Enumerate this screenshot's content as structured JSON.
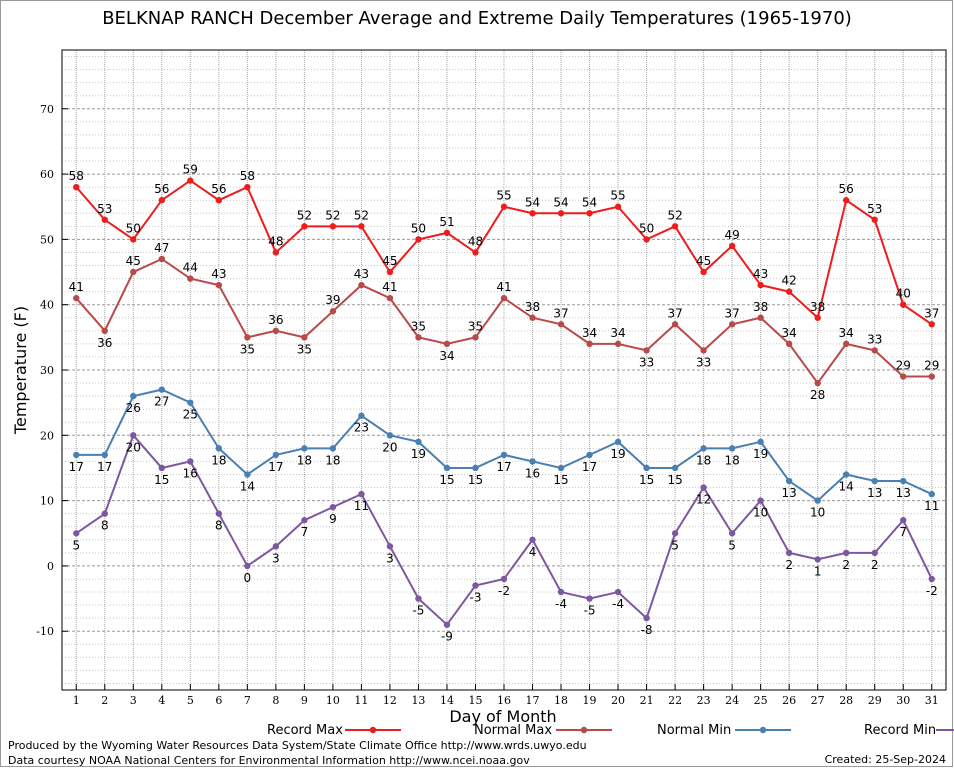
{
  "footer": {
    "line1": "Produced by the Wyoming Water Resources Data System/State Climate Office http://www.wrds.uwyo.edu",
    "line2": "Data courtesy NOAA National Centers for Environmental Information http://www.ncei.noaa.gov",
    "created": "Created:  25-Sep-2024"
  },
  "chart_data": {
    "type": "line",
    "title": "BELKNAP RANCH December Average and Extreme Daily Temperatures (1965-1970)",
    "xlabel": "Day of Month",
    "ylabel": "Temperature (F)",
    "x": [
      1,
      2,
      3,
      4,
      5,
      6,
      7,
      8,
      9,
      10,
      11,
      12,
      13,
      14,
      15,
      16,
      17,
      18,
      19,
      20,
      21,
      22,
      23,
      24,
      25,
      26,
      27,
      28,
      29,
      30,
      31
    ],
    "xlim": [
      0.5,
      31.5
    ],
    "ylim": [
      -19,
      79
    ],
    "yticks": [
      -10,
      0,
      10,
      20,
      30,
      40,
      50,
      60,
      70
    ],
    "grid": true,
    "legend": "bottom",
    "series": [
      {
        "name": "Record Max",
        "color": "#ee1c1c",
        "values": [
          58,
          53,
          50,
          56,
          59,
          56,
          58,
          48,
          52,
          52,
          52,
          45,
          50,
          51,
          48,
          55,
          54,
          54,
          54,
          55,
          50,
          52,
          45,
          49,
          43,
          42,
          38,
          56,
          53,
          40,
          37
        ]
      },
      {
        "name": "Normal Max",
        "color": "#b84a4a",
        "values": [
          41,
          36,
          45,
          47,
          44,
          43,
          35,
          36,
          35,
          39,
          43,
          41,
          35,
          34,
          35,
          41,
          38,
          37,
          34,
          34,
          33,
          37,
          33,
          37,
          38,
          34,
          28,
          34,
          33,
          29,
          29
        ]
      },
      {
        "name": "Normal Min",
        "color": "#4a7fb3",
        "values": [
          17,
          17,
          26,
          27,
          25,
          18,
          14,
          17,
          18,
          18,
          23,
          20,
          19,
          15,
          15,
          17,
          16,
          15,
          17,
          19,
          15,
          15,
          18,
          18,
          19,
          13,
          10,
          14,
          13,
          13,
          11
        ]
      },
      {
        "name": "Record Min",
        "color": "#7d58a0",
        "values": [
          5,
          8,
          20,
          15,
          16,
          8,
          0,
          3,
          7,
          9,
          11,
          3,
          -5,
          -9,
          -3,
          -2,
          4,
          -4,
          -5,
          -4,
          -8,
          5,
          12,
          5,
          10,
          2,
          1,
          2,
          2,
          7,
          -2
        ]
      }
    ]
  }
}
